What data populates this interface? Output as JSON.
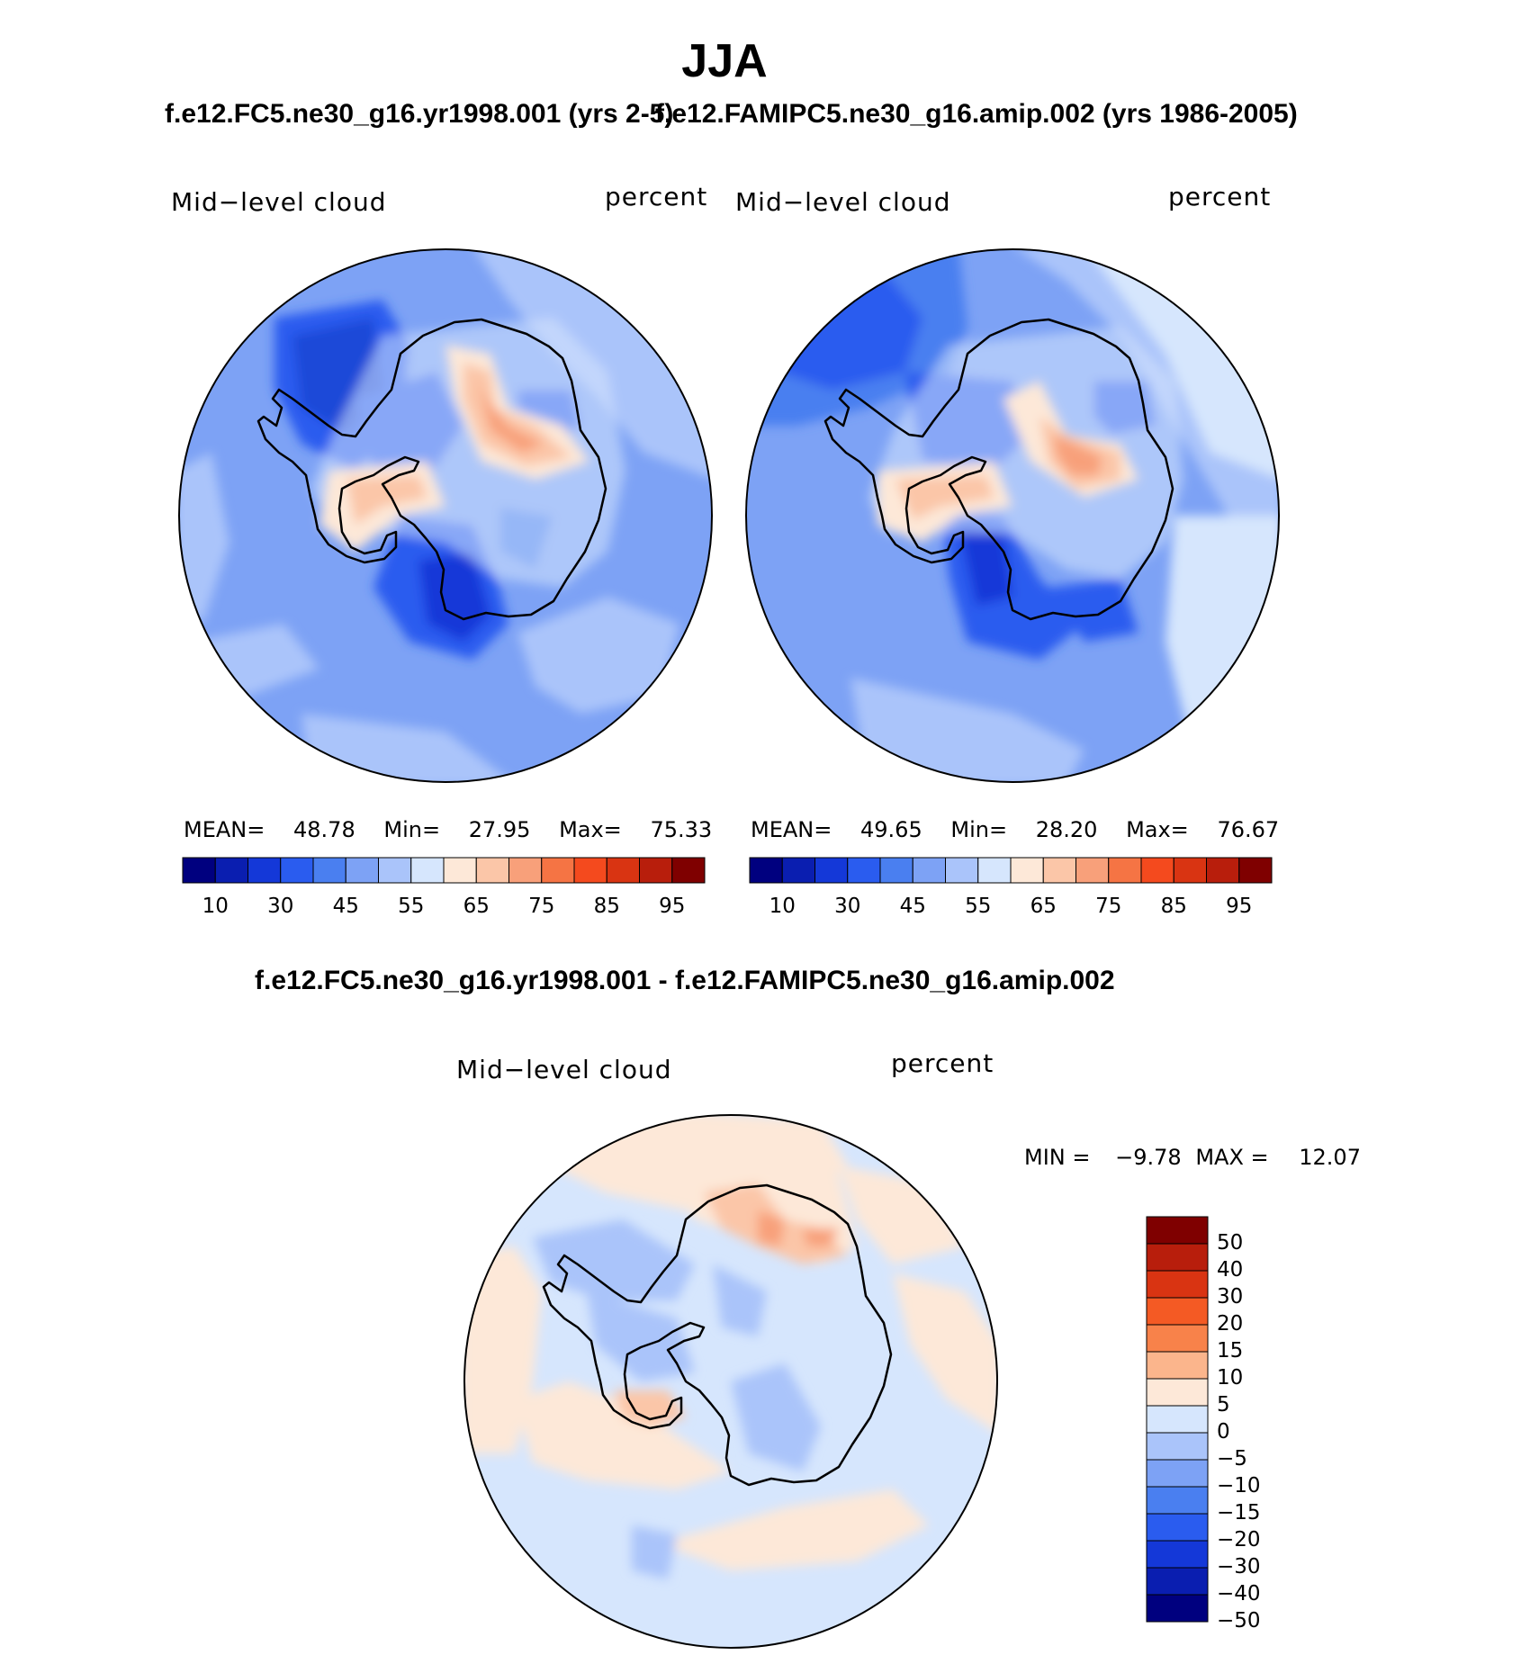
{
  "figure": {
    "title": "JJA",
    "left_case": "f.e12.FC5.ne30_g16.yr1998.001 (yrs 2-5)",
    "right_case": "f.e12.FAMIPC5.ne30_g16.amip.002 (yrs 1986-2005)",
    "diff_title": "f.e12.FC5.ne30_g16.yr1998.001 - f.e12.FAMIPC5.ne30_g16.amip.002"
  },
  "panels": {
    "left": {
      "var_label": "Mid−level cloud",
      "units": "percent",
      "mean_label": "MEAN=",
      "mean": "48.78",
      "min_label": "Min=",
      "min": "27.95",
      "max_label": "Max=",
      "max": "75.33"
    },
    "right": {
      "var_label": "Mid−level cloud",
      "units": "percent",
      "mean_label": "MEAN=",
      "mean": "49.65",
      "min_label": "Min=",
      "min": "28.20",
      "max_label": "Max=",
      "max": "76.67"
    },
    "diff": {
      "var_label": "Mid−level cloud",
      "units": "percent",
      "min_label": "MIN =",
      "min": "−9.78",
      "max_label": "MAX =",
      "max": "12.07"
    }
  },
  "colorbars": {
    "abs": {
      "colors": [
        "#00007f",
        "#0a1eb0",
        "#1438d8",
        "#2a5cef",
        "#4a7ff0",
        "#7da2f5",
        "#aac4fa",
        "#d6e6fd",
        "#fde8d8",
        "#fbc6a8",
        "#f8a07a",
        "#f57444",
        "#f44a1e",
        "#d93412",
        "#b81e0c",
        "#7f0000"
      ],
      "ticks": [
        "10",
        "30",
        "45",
        "55",
        "65",
        "75",
        "85",
        "95"
      ]
    },
    "diff": {
      "colors": [
        "#7f0000",
        "#b81e0c",
        "#d93412",
        "#f45a24",
        "#f8824a",
        "#fbb58c",
        "#fde8d8",
        "#d6e6fd",
        "#aac4fa",
        "#7da2f5",
        "#4a7ff0",
        "#2a5cef",
        "#1438d8",
        "#0a1eb0",
        "#00007f"
      ],
      "ticks": [
        "50",
        "40",
        "30",
        "20",
        "15",
        "10",
        "5",
        "0",
        "−5",
        "−10",
        "−15",
        "−20",
        "−30",
        "−40",
        "−50"
      ]
    }
  },
  "chart_data": [
    {
      "type": "heatmap",
      "projection": "south polar stereographic",
      "title": "f.e12.FC5.ne30_g16.yr1998.001 (yrs 2-5)",
      "variable": "Mid-level cloud",
      "units": "percent",
      "season": "JJA",
      "stats": {
        "mean": 48.78,
        "min": 27.95,
        "max": 75.33
      },
      "contour_levels": [
        10,
        15,
        20,
        25,
        30,
        35,
        40,
        45,
        50,
        55,
        60,
        65,
        70,
        75,
        80,
        85,
        90,
        95
      ]
    },
    {
      "type": "heatmap",
      "projection": "south polar stereographic",
      "title": "f.e12.FAMIPC5.ne30_g16.amip.002 (yrs 1986-2005)",
      "variable": "Mid-level cloud",
      "units": "percent",
      "season": "JJA",
      "stats": {
        "mean": 49.65,
        "min": 28.2,
        "max": 76.67
      },
      "contour_levels": [
        10,
        15,
        20,
        25,
        30,
        35,
        40,
        45,
        50,
        55,
        60,
        65,
        70,
        75,
        80,
        85,
        90,
        95
      ]
    },
    {
      "type": "heatmap",
      "projection": "south polar stereographic",
      "title": "f.e12.FC5.ne30_g16.yr1998.001 - f.e12.FAMIPC5.ne30_g16.amip.002",
      "variable": "Mid-level cloud",
      "units": "percent",
      "season": "JJA",
      "stats": {
        "min": -9.78,
        "max": 12.07
      },
      "contour_levels": [
        -50,
        -40,
        -30,
        -20,
        -15,
        -10,
        -5,
        0,
        5,
        10,
        15,
        20,
        30,
        40,
        50
      ]
    }
  ]
}
